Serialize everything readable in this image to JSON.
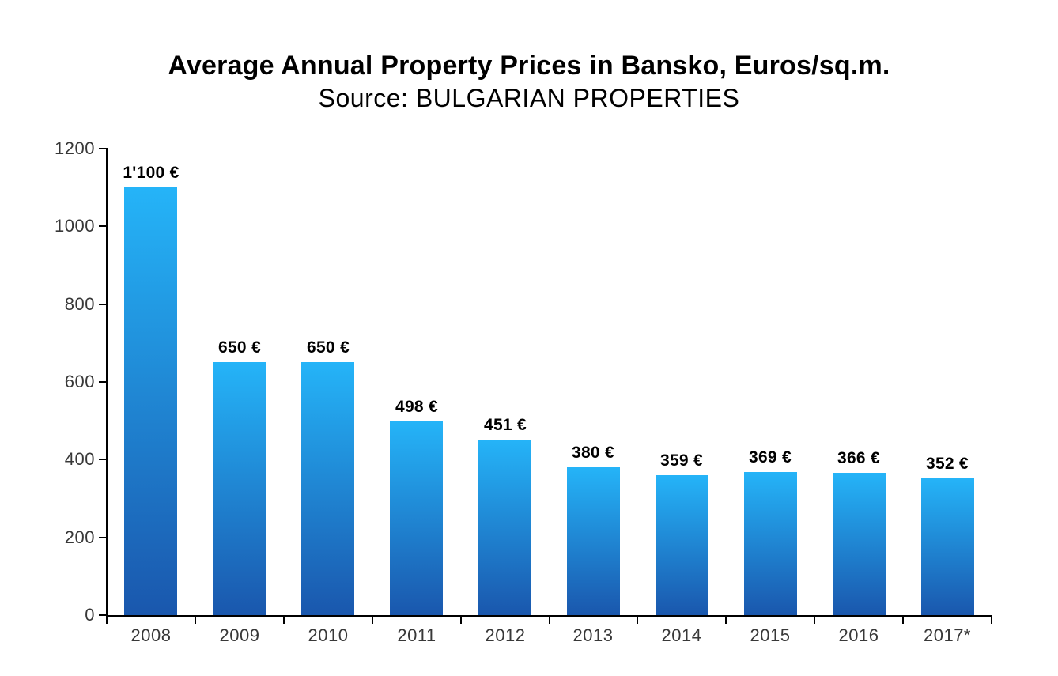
{
  "header": {
    "title": "Average Annual Property Prices in Bansko, Euros/sq.m.",
    "subtitle": "Source: BULGARIAN PROPERTIES"
  },
  "colors": {
    "background": "#FFFFFF",
    "bar_gradient_top": "#25B4F8",
    "bar_gradient_bottom": "#1A57AD",
    "axis": "#000000",
    "tick_label": "#383838",
    "data_label": "#000000"
  },
  "chart_data": {
    "type": "bar",
    "title": "Average Annual Property Prices in Bansko, Euros/sq.m.",
    "subtitle": "Source: BULGARIAN PROPERTIES",
    "categories": [
      "2008",
      "2009",
      "2010",
      "2011",
      "2012",
      "2013",
      "2014",
      "2015",
      "2016",
      "2017*"
    ],
    "values": [
      1100,
      650,
      650,
      498,
      451,
      380,
      359,
      369,
      366,
      352
    ],
    "value_labels": [
      "1'100 €",
      "650 €",
      "650 €",
      "498 €",
      "451 €",
      "380 €",
      "359 €",
      "369 €",
      "366 €",
      "352 €"
    ],
    "xlabel": "",
    "ylabel": "",
    "ylim": [
      0,
      1200
    ],
    "yticks": [
      0,
      200,
      400,
      600,
      800,
      1000,
      1200
    ],
    "grid": false,
    "legend": false
  }
}
